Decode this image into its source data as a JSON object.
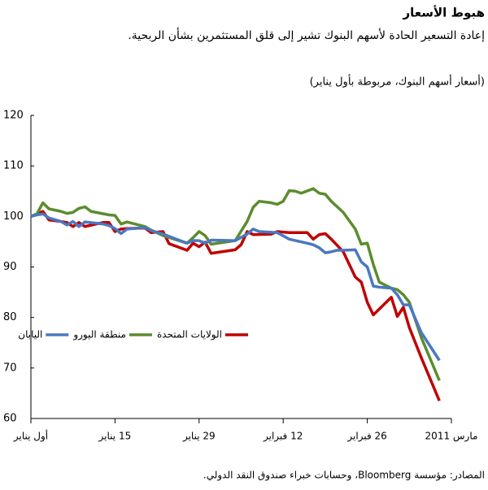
{
  "chart_data": {
    "type": "line",
    "title": "هبوط الأسعار",
    "subtitle": "إعادة التسعير الحادة لأسهم البنوك تشير إلى قلق المستثمرين بشأن الربحية.",
    "y_label": "(أسعار أسهم البنوك، مربوطة بأول يناير)",
    "source": "المصادر: مؤسسة Bloomberg، وحسابات خبراء صندوق النقد الدولي.",
    "xlim": [
      0,
      70
    ],
    "xticks": [
      {
        "value": 0,
        "label": "أول يناير"
      },
      {
        "value": 14,
        "label": "15 يناير"
      },
      {
        "value": 28,
        "label": "29 يناير"
      },
      {
        "value": 42,
        "label": "12 فبراير"
      },
      {
        "value": 56,
        "label": "26 فبراير"
      },
      {
        "value": 70,
        "label": "مارس 2011"
      }
    ],
    "ylim": [
      60,
      120
    ],
    "yticks": [
      60,
      70,
      80,
      90,
      100,
      110,
      120
    ],
    "grid": false,
    "series": [
      {
        "name": "الولايات المتحدة",
        "color": "#c00000",
        "x": [
          0,
          2,
          3,
          5,
          6,
          7,
          8,
          9,
          12,
          13,
          14,
          15,
          16,
          19,
          20,
          22,
          23,
          26,
          27,
          28,
          29,
          30,
          34,
          35,
          36,
          37,
          40,
          41,
          43,
          46,
          47,
          48,
          49,
          50,
          52,
          54,
          55,
          56,
          57,
          60,
          61,
          62,
          63,
          65,
          68
        ],
        "values": [
          100,
          101,
          99.3,
          99,
          98.8,
          98,
          98.8,
          98,
          98.8,
          98.8,
          97,
          97.5,
          97.6,
          97.7,
          96.8,
          97,
          94.6,
          93.3,
          94.7,
          94,
          94.9,
          92.7,
          93.4,
          94.4,
          97,
          96.4,
          96.5,
          97,
          96.8,
          96.8,
          95.5,
          96.4,
          96.6,
          95.5,
          93,
          88,
          87,
          83,
          80.5,
          84,
          80.2,
          82,
          78,
          72,
          63.5
        ]
      },
      {
        "name": "منطقة اليورو",
        "color": "#5b8c2e",
        "x": [
          0,
          1,
          2,
          3,
          5,
          6,
          7,
          8,
          9,
          10,
          13,
          14,
          15,
          16,
          19,
          20,
          22,
          26,
          27,
          28,
          29,
          30,
          34,
          36,
          37,
          38,
          40,
          41,
          42,
          43,
          44,
          45,
          47,
          48,
          49,
          50,
          52,
          54,
          55,
          56,
          57,
          58,
          60,
          61,
          62,
          63,
          65,
          68
        ],
        "values": [
          100,
          100.5,
          102.7,
          101.5,
          101,
          100.6,
          100.8,
          101.6,
          101.9,
          101,
          100.3,
          100.2,
          98.5,
          98.9,
          98,
          97.3,
          96.2,
          94.7,
          95.8,
          97,
          96.2,
          94.5,
          95.2,
          99,
          101.8,
          103,
          102.7,
          102.4,
          103,
          105.1,
          105,
          104.6,
          105.5,
          104.6,
          104.4,
          103,
          100.8,
          97.5,
          94.5,
          94.7,
          90.5,
          87,
          85.8,
          85.5,
          84.5,
          83,
          76,
          67.5
        ]
      },
      {
        "name": "اليابان",
        "color": "#4a78c2",
        "x": [
          0,
          1,
          2,
          3,
          5,
          6,
          7,
          8,
          9,
          12,
          13,
          14,
          15,
          16,
          19,
          20,
          22,
          26,
          27,
          28,
          29,
          30,
          34,
          36,
          37,
          38,
          41,
          43,
          46,
          47,
          48,
          49,
          50,
          51,
          52,
          54,
          55,
          56,
          57,
          58,
          60,
          61,
          62,
          63,
          65,
          68
        ],
        "values": [
          100,
          100.3,
          100.5,
          99.7,
          99,
          98.3,
          99,
          98,
          98.9,
          98.5,
          98.2,
          97.6,
          96.6,
          97.5,
          97.8,
          97.2,
          96.5,
          94.7,
          95.2,
          95.2,
          94.7,
          95.3,
          95.2,
          96.5,
          97.5,
          97,
          96.8,
          95.5,
          94.7,
          94.4,
          93.8,
          92.8,
          93,
          93.3,
          93.3,
          93.4,
          91,
          90,
          86.2,
          86,
          85.8,
          84.5,
          82.5,
          82.5,
          77,
          71.5
        ]
      }
    ]
  }
}
